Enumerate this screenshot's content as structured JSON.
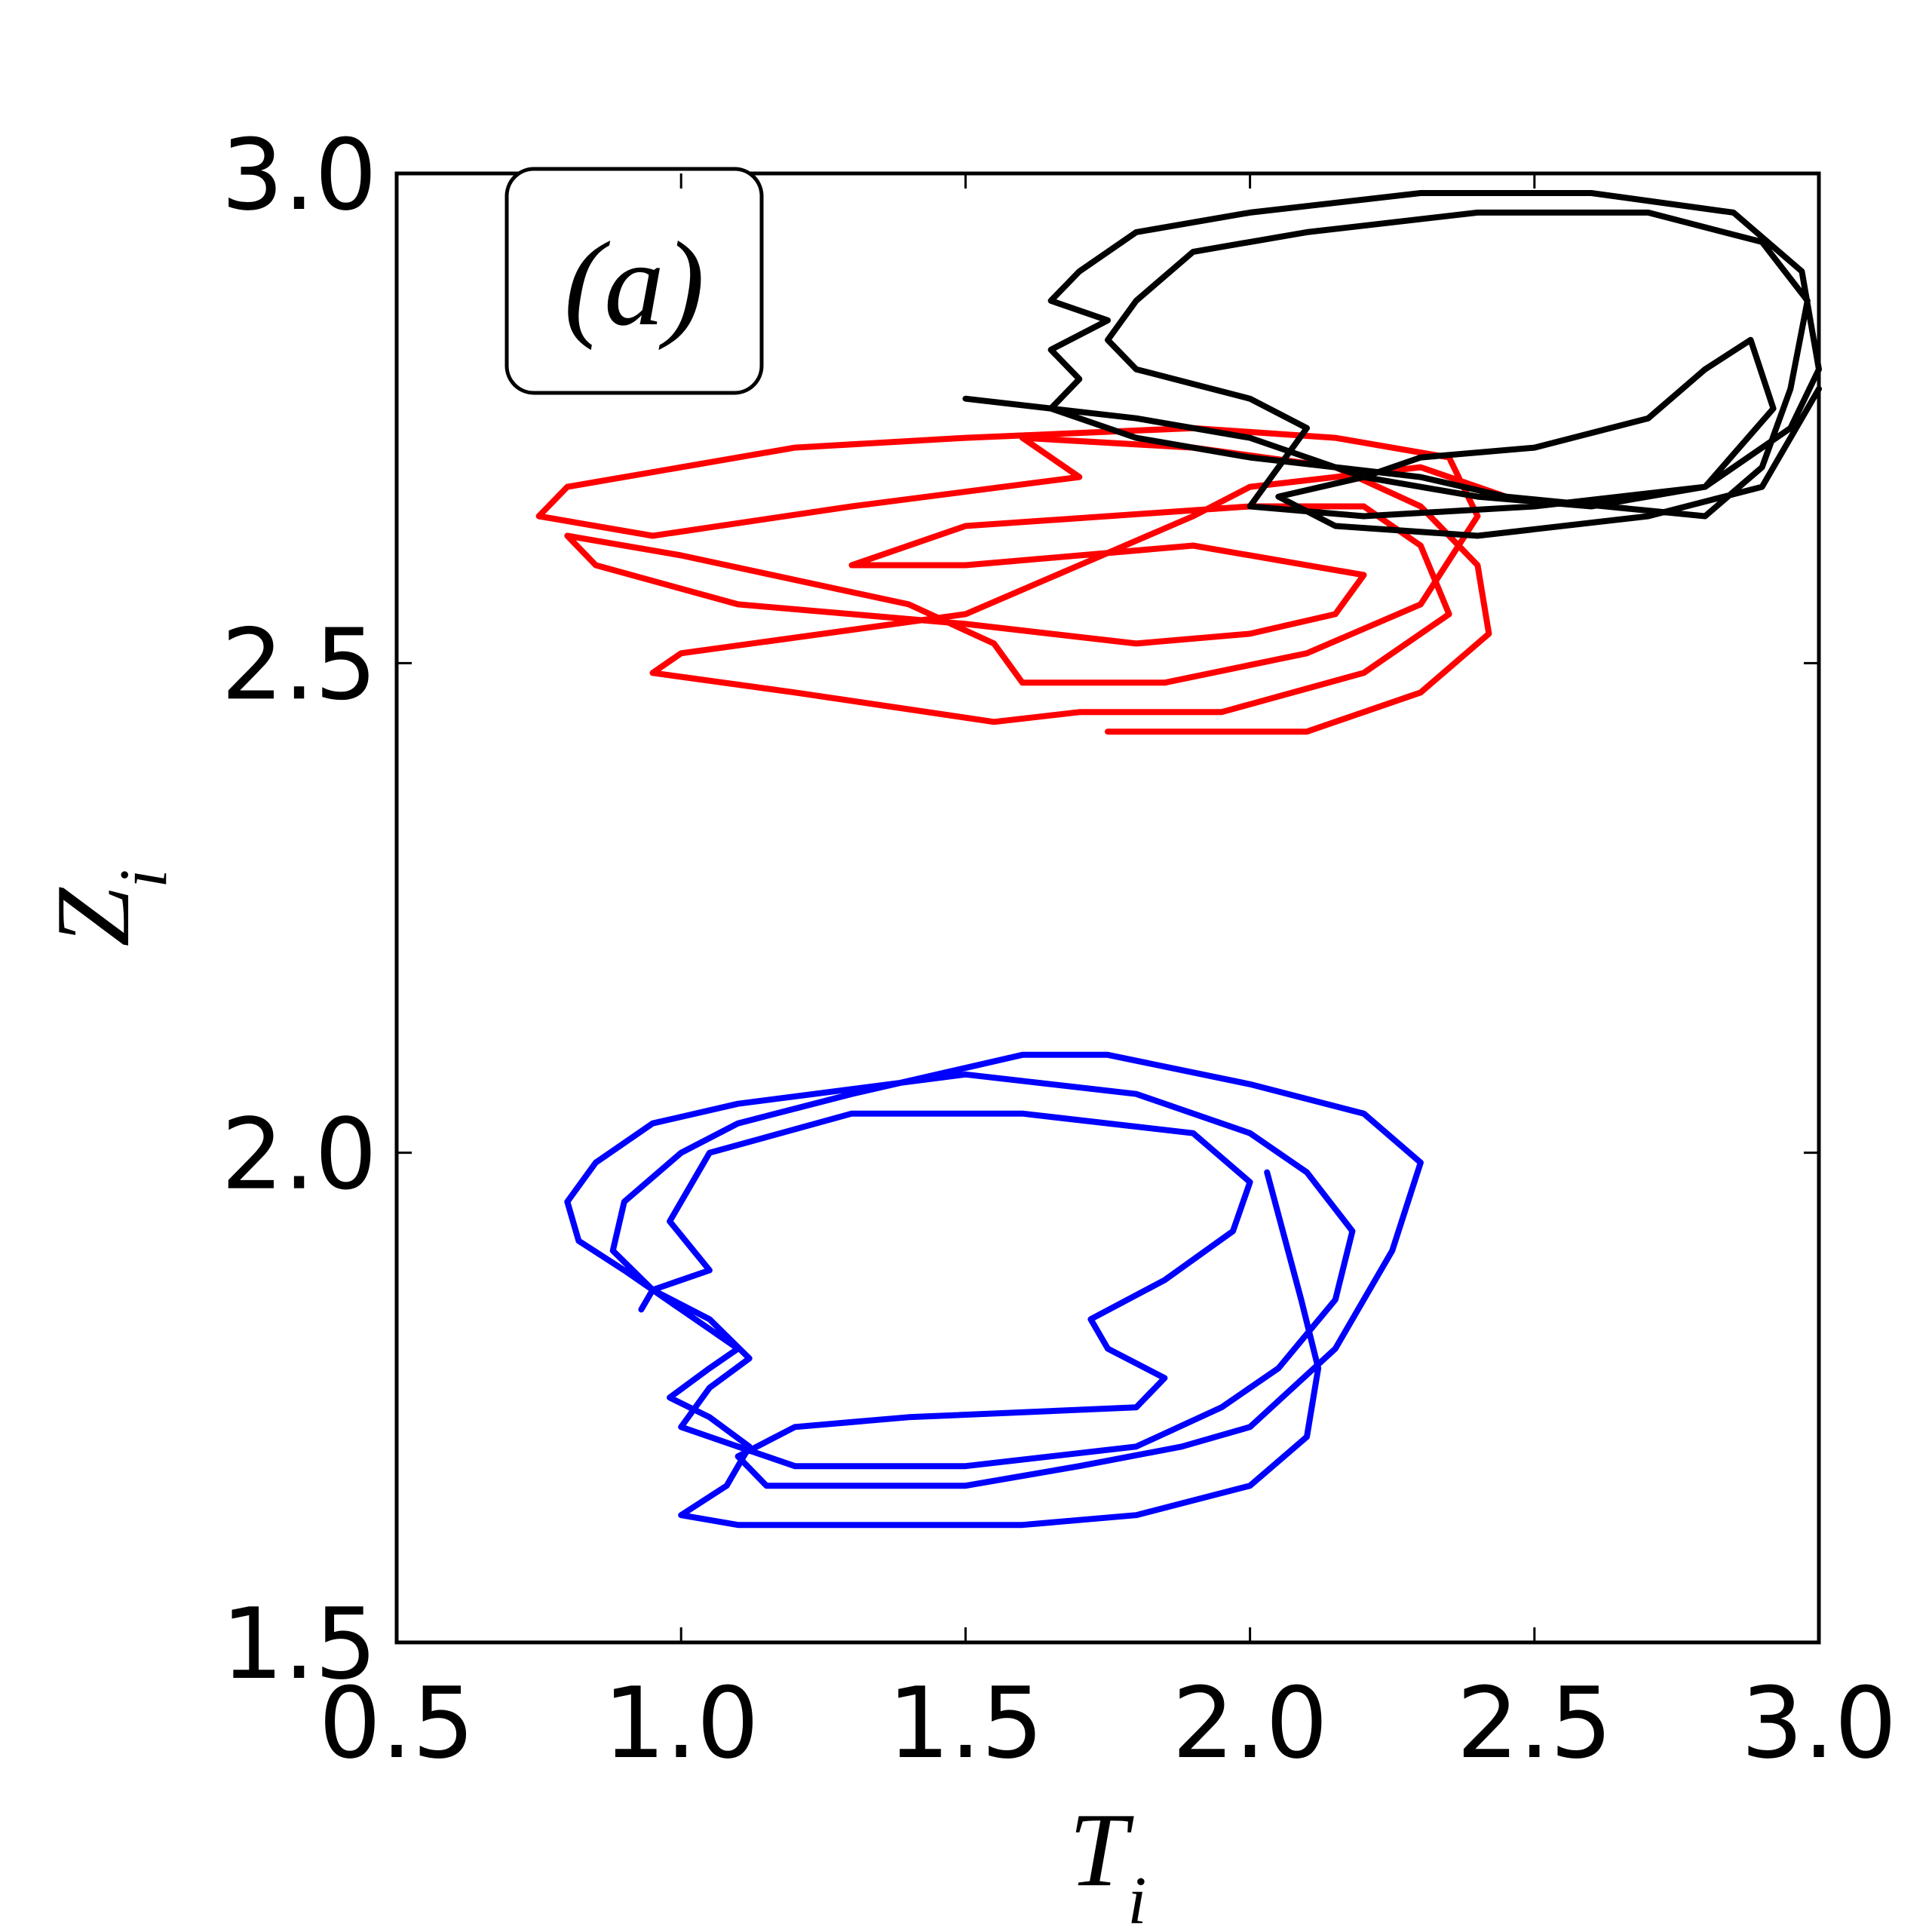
{
  "chart_data": {
    "type": "line",
    "annotation": "(a)",
    "xlabel": "T_i",
    "ylabel": "Z_i",
    "xlim": [
      0.5,
      3.0
    ],
    "ylim": [
      1.5,
      3.0
    ],
    "xticks": [
      0.5,
      {
        "value": 1.0,
        "label": "1.0"
      },
      1.5,
      {
        "value": 2.0,
        "label": "2.0"
      },
      2.5,
      {
        "value": 3.0,
        "label": "3.0"
      }
    ],
    "yticks": [
      1.5,
      {
        "value": 2.0,
        "label": "2.0"
      },
      2.5,
      {
        "value": 3.0,
        "label": "3.0"
      }
    ],
    "series": [
      {
        "color": "#0000ff",
        "x": [
          2.03,
          2.09,
          2.12,
          2.1,
          2.0,
          1.8,
          1.6,
          1.3,
          1.1,
          1.0,
          1.08,
          1.12,
          1.05,
          0.98,
          1.05,
          1.1,
          1.0,
          0.9,
          0.82,
          0.8,
          0.85,
          0.95,
          1.1,
          1.5,
          1.8,
          2.0,
          2.1,
          2.18,
          2.15,
          2.05,
          1.95,
          1.8,
          1.5,
          1.2,
          1.1,
          1.0,
          1.05,
          1.12,
          1.05,
          0.95,
          0.88,
          0.9,
          1.0,
          1.1,
          1.3,
          1.6,
          1.75,
          2.0,
          2.2,
          2.3,
          2.25,
          2.15,
          2.0,
          1.88,
          1.7,
          1.5,
          1.15,
          1.1,
          1.2,
          1.4,
          1.8,
          1.85,
          1.75,
          1.72,
          1.85,
          1.97,
          2.0,
          1.9,
          1.6,
          1.3,
          1.05,
          0.98,
          1.05,
          0.95,
          0.93
        ],
        "values": [
          1.98,
          1.85,
          1.78,
          1.71,
          1.66,
          1.63,
          1.62,
          1.62,
          1.62,
          1.63,
          1.66,
          1.7,
          1.73,
          1.75,
          1.78,
          1.8,
          1.84,
          1.88,
          1.91,
          1.95,
          1.99,
          2.03,
          2.05,
          2.08,
          2.06,
          2.02,
          1.98,
          1.92,
          1.85,
          1.78,
          1.74,
          1.7,
          1.68,
          1.68,
          1.7,
          1.72,
          1.76,
          1.79,
          1.83,
          1.86,
          1.9,
          1.95,
          2.0,
          2.03,
          2.06,
          2.1,
          2.1,
          2.07,
          2.04,
          1.99,
          1.9,
          1.8,
          1.72,
          1.7,
          1.68,
          1.66,
          1.66,
          1.69,
          1.72,
          1.73,
          1.74,
          1.77,
          1.8,
          1.83,
          1.87,
          1.92,
          1.97,
          2.02,
          2.04,
          2.04,
          2.0,
          1.93,
          1.88,
          1.86,
          1.84
        ]
      },
      {
        "color": "#ff0000",
        "x": [
          1.75,
          2.1,
          2.3,
          2.42,
          2.4,
          2.3,
          2.15,
          1.9,
          1.6,
          1.7,
          1.3,
          0.95,
          0.75,
          0.8,
          1.2,
          1.5,
          1.9,
          2.15,
          2.35,
          2.4,
          2.3,
          2.1,
          1.85,
          1.6,
          1.55,
          1.4,
          1.0,
          0.8,
          0.85,
          1.1,
          1.5,
          1.8,
          2.0,
          2.15,
          2.2,
          1.9,
          1.5,
          1.3,
          1.5,
          2.0,
          2.2,
          2.3,
          2.35,
          2.2,
          1.95,
          1.7,
          1.55,
          1.2,
          0.95,
          1.0,
          1.5,
          1.7,
          1.9,
          2.0,
          2.3,
          2.45
        ],
        "values": [
          2.43,
          2.43,
          2.47,
          2.53,
          2.6,
          2.66,
          2.7,
          2.72,
          2.73,
          2.69,
          2.66,
          2.63,
          2.65,
          2.68,
          2.72,
          2.73,
          2.74,
          2.73,
          2.71,
          2.65,
          2.56,
          2.51,
          2.48,
          2.48,
          2.52,
          2.56,
          2.61,
          2.63,
          2.6,
          2.56,
          2.54,
          2.52,
          2.53,
          2.55,
          2.59,
          2.62,
          2.6,
          2.6,
          2.64,
          2.66,
          2.66,
          2.62,
          2.55,
          2.49,
          2.45,
          2.45,
          2.44,
          2.47,
          2.49,
          2.51,
          2.55,
          2.6,
          2.65,
          2.68,
          2.7,
          2.67
        ]
      },
      {
        "color": "#000000",
        "x": [
          1.5,
          1.8,
          2.0,
          2.2,
          2.4,
          2.6,
          2.8,
          2.95,
          3.0,
          2.97,
          2.85,
          2.6,
          2.3,
          2.0,
          1.8,
          1.7,
          1.65,
          1.75,
          1.65,
          1.7,
          1.65,
          1.8,
          2.0,
          2.3,
          2.45,
          2.8,
          2.9,
          2.95,
          2.98,
          2.9,
          2.7,
          2.4,
          2.1,
          1.9,
          1.8,
          1.75,
          1.8,
          2.0,
          2.1,
          2.05,
          2.0,
          2.2,
          2.5,
          2.8,
          2.92,
          2.88,
          2.8,
          2.7,
          2.5,
          2.3,
          2.2,
          2.05,
          2.15,
          2.4,
          2.7,
          2.9,
          3.0
        ],
        "values": [
          2.77,
          2.75,
          2.73,
          2.69,
          2.67,
          2.66,
          2.68,
          2.74,
          2.8,
          2.9,
          2.96,
          2.98,
          2.98,
          2.96,
          2.94,
          2.9,
          2.87,
          2.85,
          2.82,
          2.79,
          2.76,
          2.73,
          2.71,
          2.69,
          2.67,
          2.65,
          2.7,
          2.78,
          2.87,
          2.93,
          2.96,
          2.96,
          2.94,
          2.92,
          2.87,
          2.83,
          2.8,
          2.77,
          2.74,
          2.7,
          2.66,
          2.65,
          2.66,
          2.68,
          2.76,
          2.83,
          2.8,
          2.75,
          2.72,
          2.71,
          2.69,
          2.67,
          2.64,
          2.63,
          2.65,
          2.68,
          2.78
        ]
      }
    ]
  }
}
